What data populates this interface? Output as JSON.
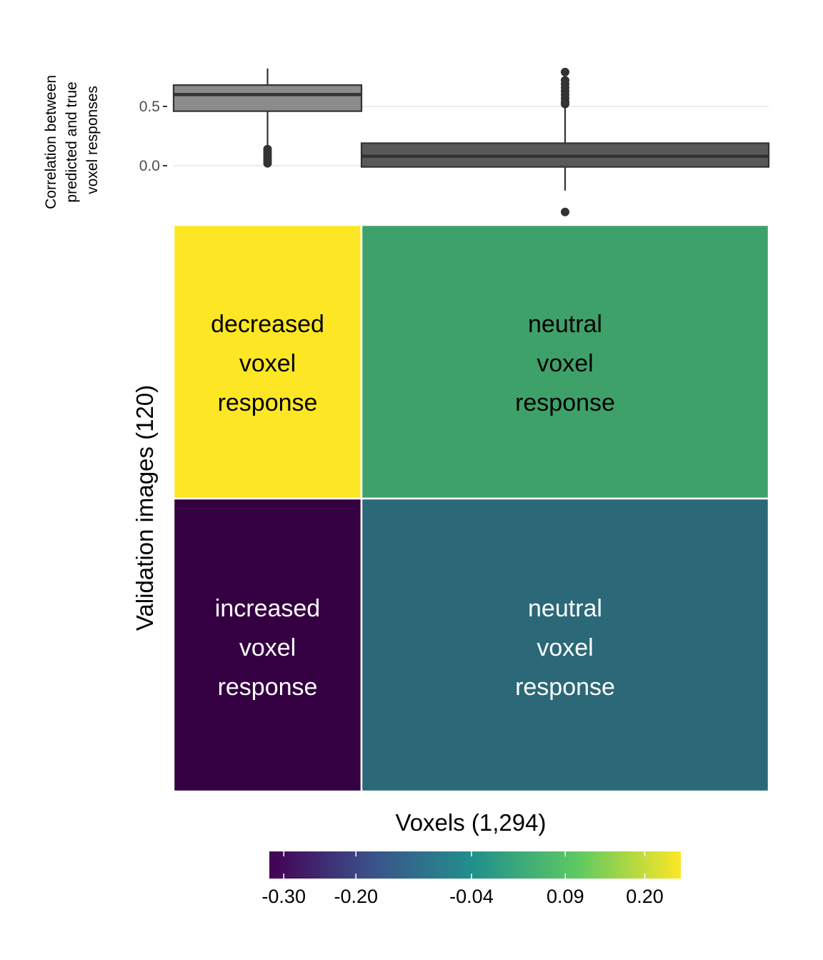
{
  "chart_data": [
    {
      "type": "box",
      "ylabel": [
        "Correlation between",
        "predicted and true",
        "voxel responses"
      ],
      "yticks": [
        0.5,
        0.0
      ],
      "ytick_labels": [
        "0.5",
        "0.0"
      ],
      "ylim": [
        -0.42,
        0.87
      ],
      "grid": true,
      "boxes": [
        {
          "fill": "#8c8c8c",
          "whisker_low": 0.02,
          "q1": 0.46,
          "median": 0.6,
          "q3": 0.68,
          "whisker_high": 0.82,
          "outliers": [
            0.02,
            0.04,
            0.06,
            0.08,
            0.1,
            0.12,
            0.14
          ]
        },
        {
          "fill": "#595959",
          "whisker_low": -0.21,
          "q1": -0.01,
          "median": 0.08,
          "q3": 0.19,
          "whisker_high": 0.5,
          "outliers": [
            -0.39,
            0.52,
            0.54,
            0.57,
            0.6,
            0.63,
            0.66,
            0.69,
            0.72,
            0.79
          ]
        }
      ]
    },
    {
      "type": "heatmap",
      "xlabel": "Voxels (1,294)",
      "ylabel": "Validation images (120)",
      "cells": [
        {
          "row": 0,
          "col": 0,
          "value": 0.22,
          "color": "#fde725",
          "text_color": "#000000",
          "label": [
            "decreased",
            "voxel",
            "response"
          ]
        },
        {
          "row": 0,
          "col": 1,
          "value": 0.06,
          "color": "#3fa16a",
          "text_color": "#000000",
          "label": [
            "neutral",
            "voxel",
            "response"
          ]
        },
        {
          "row": 1,
          "col": 0,
          "value": -0.32,
          "color": "#340042",
          "text_color": "#ffffff",
          "label": [
            "increased",
            "voxel",
            "response"
          ]
        },
        {
          "row": 1,
          "col": 1,
          "value": -0.02,
          "color": "#2b6878",
          "text_color": "#ffffff",
          "label": [
            "neutral",
            "voxel",
            "response"
          ]
        }
      ],
      "colorbar": {
        "range": [
          -0.32,
          0.25
        ],
        "ticks": [
          -0.3,
          -0.2,
          -0.04,
          0.09,
          0.2
        ],
        "tick_labels": [
          "-0.30",
          "-0.20",
          "-0.04",
          "0.09",
          "0.20"
        ],
        "colors": [
          "#440154",
          "#3b528b",
          "#21918c",
          "#5ec962",
          "#fde725"
        ],
        "placement": "bottom"
      }
    }
  ]
}
